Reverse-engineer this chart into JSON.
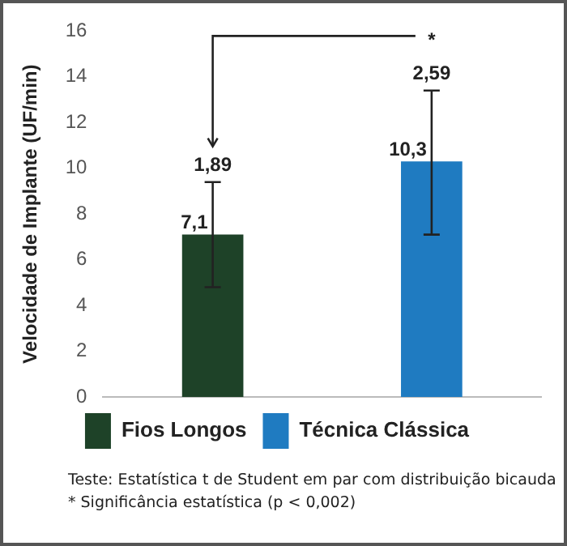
{
  "chart_data": {
    "type": "bar",
    "ylabel": "Velocidade de Implante (UF/min)",
    "categories": [
      null,
      null
    ],
    "series": [
      {
        "name": "Fios Longos",
        "color": "#1e4228",
        "values": [
          7.1,
          null
        ],
        "errors": [
          [
            4.8,
            9.4
          ],
          null
        ],
        "value_labels": [
          "7,1",
          null
        ]
      },
      {
        "name": "Técnica Clássica",
        "color": "#1f7bc1",
        "values": [
          null,
          10.3
        ],
        "errors": [
          null,
          [
            7.1,
            13.4
          ]
        ],
        "value_labels": [
          null,
          "10,3"
        ]
      }
    ],
    "ylim": [
      0,
      16
    ],
    "yticks": [
      0,
      2,
      4,
      6,
      8,
      10,
      12,
      14,
      16
    ],
    "grid": false,
    "legend": "bottom",
    "annotations": [
      "*",
      {
        "text": "1,89",
        "y": 9.4
      },
      {
        "text": "2,59",
        "y": 13.4
      },
      "Teste: Estatística t de Student em par com distribuição bicauda",
      "* Significância estatística (p < 0,002)"
    ]
  }
}
